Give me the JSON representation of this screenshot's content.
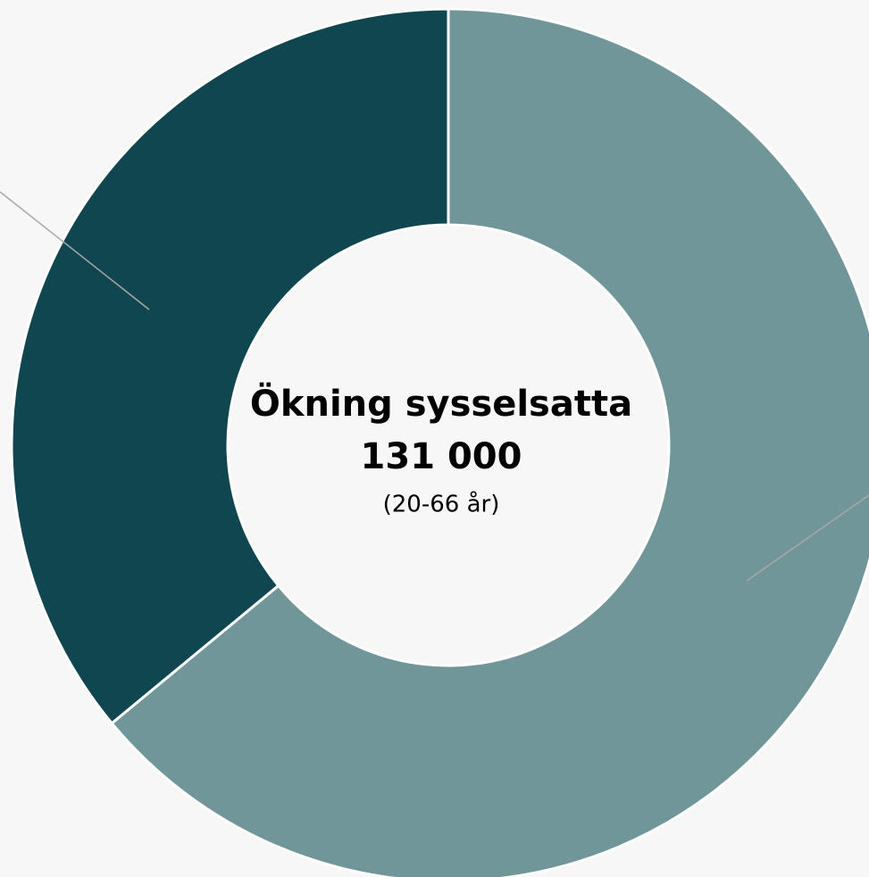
{
  "chart_data": {
    "type": "donut",
    "values": [
      64,
      36
    ],
    "colors": [
      "#71969a",
      "#10464f"
    ],
    "center_text": [
      "Ökning sysselsatta",
      "131 000",
      "(20-66 år)"
    ]
  }
}
